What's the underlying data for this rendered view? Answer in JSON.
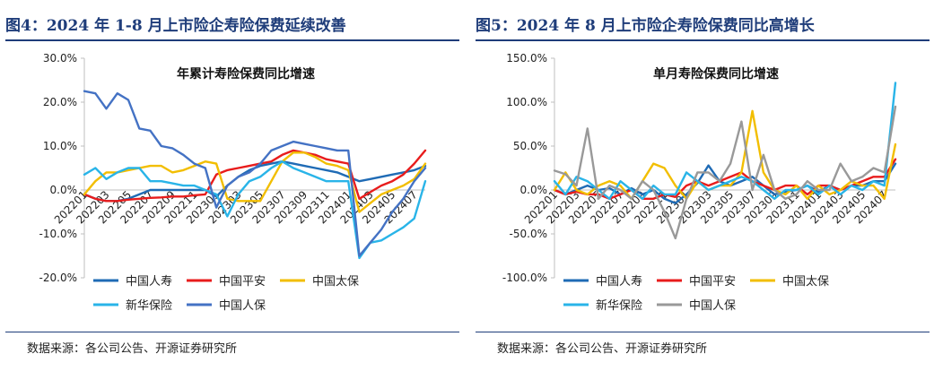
{
  "left_panel": {
    "figure_title": "图4：2024 年 1-8 月上市险企寿险保费延续改善",
    "source": "数据来源：各公司公告、开源证券研究所"
  },
  "right_panel": {
    "figure_title": "图5：2024 年 8 月上市险企寿险保费同比高增长",
    "source": "数据来源：各公司公告、开源证券研究所"
  },
  "chart_data": [
    {
      "type": "line",
      "title": "年累计寿险保费同比增速",
      "ylim": [
        -0.2,
        0.3
      ],
      "y_ticks": [
        "30.0%",
        "20.0%",
        "10.0%",
        "0.0%",
        "-10.0%",
        "-20.0%"
      ],
      "y_tick_values": [
        0.3,
        0.2,
        0.1,
        0.0,
        -0.1,
        -0.2
      ],
      "x": [
        "202201",
        "202202",
        "202203",
        "202204",
        "202205",
        "202206",
        "202207",
        "202208",
        "202209",
        "202210",
        "202211",
        "202212",
        "202301",
        "202302",
        "202303",
        "202304",
        "202305",
        "202306",
        "202307",
        "202308",
        "202309",
        "202310",
        "202311",
        "202312",
        "202401",
        "202402",
        "202403",
        "202404",
        "202405",
        "202406",
        "202407",
        "202408"
      ],
      "x_tick_labels": [
        "202201",
        "202203",
        "202205",
        "202207",
        "202209",
        "202211",
        "202301",
        "202303",
        "202305",
        "202307",
        "202309",
        "202311",
        "202401",
        "202403",
        "202405",
        "202407"
      ],
      "legend_position": "bottom",
      "series": [
        {
          "name": "中国人寿",
          "color": "#1f6bb5",
          "values": [
            -0.01,
            -0.02,
            -0.025,
            -0.025,
            -0.02,
            -0.01,
            0.0,
            0.0,
            0.0,
            0.0,
            0.0,
            0.0,
            -0.015,
            0.01,
            0.03,
            0.045,
            0.055,
            0.06,
            0.065,
            0.06,
            0.055,
            0.05,
            0.045,
            0.04,
            0.03,
            0.02,
            0.025,
            0.03,
            0.035,
            0.04,
            0.045,
            0.055
          ]
        },
        {
          "name": "中国平安",
          "color": "#e81c1c",
          "values": [
            -0.01,
            -0.02,
            -0.025,
            -0.025,
            -0.022,
            -0.02,
            -0.018,
            -0.017,
            -0.015,
            -0.015,
            -0.012,
            -0.01,
            0.035,
            0.045,
            0.05,
            0.055,
            0.06,
            0.065,
            0.08,
            0.09,
            0.085,
            0.08,
            0.07,
            0.065,
            0.06,
            -0.02,
            -0.005,
            0.01,
            0.02,
            0.035,
            0.06,
            0.09
          ]
        },
        {
          "name": "中国太保",
          "color": "#f2be00",
          "values": [
            -0.01,
            0.02,
            0.04,
            0.04,
            0.045,
            0.05,
            0.055,
            0.055,
            0.04,
            0.045,
            0.055,
            0.065,
            0.06,
            -0.02,
            -0.025,
            -0.025,
            -0.025,
            0.02,
            0.065,
            0.085,
            0.085,
            0.075,
            0.06,
            0.055,
            0.045,
            -0.05,
            -0.03,
            -0.01,
            0.0,
            0.01,
            0.025,
            0.06
          ]
        },
        {
          "name": "新华保险",
          "color": "#29b4e8",
          "values": [
            0.035,
            0.05,
            0.025,
            0.04,
            0.05,
            0.05,
            0.02,
            0.02,
            0.015,
            0.01,
            0.01,
            0.0,
            -0.01,
            -0.06,
            -0.01,
            0.02,
            0.03,
            0.05,
            0.065,
            0.05,
            0.04,
            0.03,
            0.02,
            0.02,
            0.02,
            -0.155,
            -0.12,
            -0.115,
            -0.1,
            -0.085,
            -0.065,
            0.02
          ]
        },
        {
          "name": "中国人保",
          "color": "#4472c4",
          "values": [
            0.225,
            0.22,
            0.185,
            0.22,
            0.205,
            0.14,
            0.135,
            0.1,
            0.095,
            0.08,
            0.06,
            0.05,
            -0.04,
            0.01,
            0.03,
            0.04,
            0.06,
            0.09,
            0.1,
            0.11,
            0.105,
            0.1,
            0.095,
            0.09,
            0.09,
            -0.15,
            -0.12,
            -0.09,
            -0.05,
            -0.02,
            0.02,
            0.05
          ]
        }
      ]
    },
    {
      "type": "line",
      "title": "单月寿险保费同比增速",
      "ylim": [
        -1.0,
        1.5
      ],
      "y_ticks": [
        "150.0%",
        "100.0%",
        "50.0%",
        "0.0%",
        "-50.0%",
        "-100.0%"
      ],
      "y_tick_values": [
        1.5,
        1.0,
        0.5,
        0.0,
        -0.5,
        -1.0
      ],
      "x": [
        "202201",
        "202202",
        "202203",
        "202204",
        "202205",
        "202206",
        "202207",
        "202208",
        "202209",
        "202210",
        "202211",
        "202212",
        "202301",
        "202302",
        "202303",
        "202304",
        "202305",
        "202306",
        "202307",
        "202308",
        "202309",
        "202310",
        "202311",
        "202312",
        "202401",
        "202402",
        "202403",
        "202404",
        "202405",
        "202406",
        "202407",
        "202408"
      ],
      "x_tick_labels": [
        "202201",
        "202203",
        "202205",
        "202207",
        "202209",
        "202211",
        "202301",
        "202303",
        "202305",
        "202307",
        "202309",
        "202311",
        "202401",
        "202403",
        "202405",
        "202407"
      ],
      "legend_position": "bottom",
      "series": [
        {
          "name": "中国人寿",
          "color": "#1f6bb5",
          "values": [
            0.0,
            -0.05,
            0.0,
            0.05,
            0.0,
            0.02,
            -0.05,
            0.02,
            -0.05,
            0.0,
            -0.1,
            -0.15,
            -0.05,
            0.08,
            0.28,
            0.1,
            0.05,
            0.1,
            0.15,
            0.05,
            -0.05,
            -0.02,
            0.0,
            0.05,
            -0.02,
            0.05,
            0.0,
            0.05,
            0.05,
            0.1,
            0.1,
            0.3
          ]
        },
        {
          "name": "中国平安",
          "color": "#e81c1c",
          "values": [
            0.0,
            -0.05,
            -0.02,
            -0.05,
            -0.05,
            -0.1,
            -0.05,
            0.0,
            -0.1,
            -0.1,
            -0.05,
            -0.08,
            0.05,
            0.1,
            0.05,
            0.1,
            0.15,
            0.2,
            0.1,
            0.05,
            0.0,
            0.05,
            0.05,
            -0.05,
            0.05,
            0.05,
            0.0,
            0.05,
            0.1,
            0.15,
            0.15,
            0.35
          ]
        },
        {
          "name": "中国太保",
          "color": "#f2be00",
          "values": [
            0.0,
            0.2,
            0.0,
            -0.05,
            0.05,
            0.1,
            0.05,
            -0.1,
            0.1,
            0.3,
            0.25,
            0.05,
            -0.1,
            0.1,
            0.0,
            0.05,
            0.05,
            0.2,
            0.9,
            0.2,
            0.0,
            -0.05,
            0.05,
            -0.1,
            0.05,
            -0.05,
            0.0,
            0.1,
            0.05,
            0.05,
            -0.1,
            0.52
          ]
        },
        {
          "name": "新华保险",
          "color": "#29b4e8",
          "values": [
            0.1,
            -0.05,
            0.15,
            0.1,
            0.0,
            -0.1,
            0.1,
            0.0,
            -0.1,
            0.05,
            -0.05,
            -0.05,
            0.2,
            0.1,
            0.0,
            0.05,
            0.1,
            0.15,
            0.1,
            0.0,
            -0.1,
            0.0,
            0.0,
            0.05,
            -0.05,
            0.05,
            -0.05,
            0.05,
            0.0,
            0.1,
            0.05,
            1.22
          ]
        },
        {
          "name": "中国人保",
          "color": "#999999",
          "values": [
            0.22,
            0.18,
            0.05,
            0.7,
            -0.1,
            0.05,
            0.0,
            -0.1,
            0.1,
            0.0,
            -0.25,
            -0.55,
            -0.1,
            0.2,
            0.2,
            0.1,
            0.3,
            0.78,
            0.0,
            0.4,
            0.0,
            -0.1,
            -0.05,
            0.1,
            0.0,
            0.0,
            0.3,
            0.1,
            0.15,
            0.25,
            0.2,
            0.95
          ]
        }
      ]
    }
  ]
}
